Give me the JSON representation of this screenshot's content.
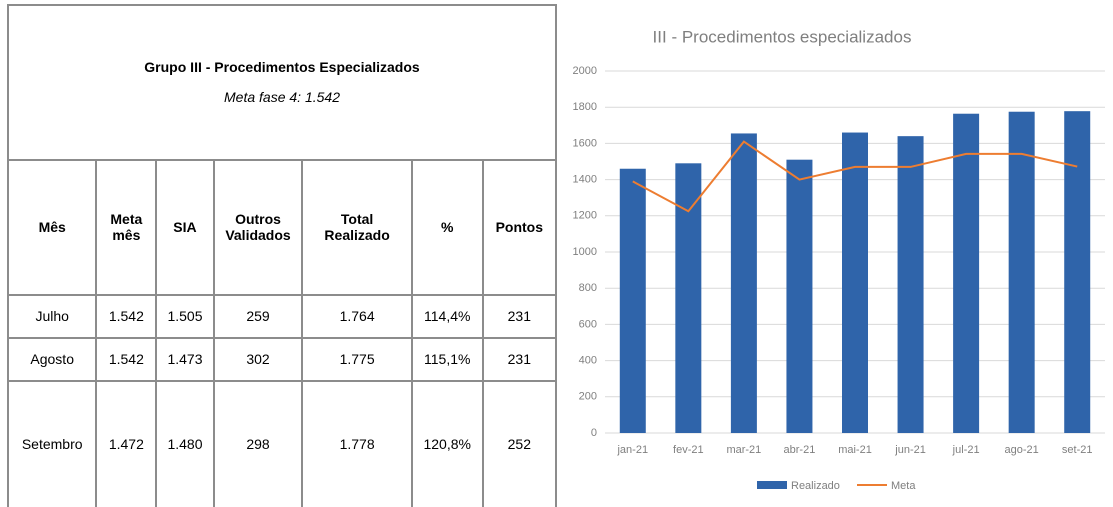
{
  "table": {
    "title": "Grupo III - Procedimentos Especializados",
    "subtitle": "Meta fase 4: 1.542",
    "columns": [
      "Mês",
      "Meta mês",
      "SIA",
      "Outros Validados",
      "Total Realizado",
      "%",
      "Pontos"
    ],
    "rows": [
      [
        "Julho",
        "1.542",
        "1.505",
        "259",
        "1.764",
        "114,4%",
        "231"
      ],
      [
        "Agosto",
        "1.542",
        "1.473",
        "302",
        "1.775",
        "115,1%",
        "231"
      ],
      [
        "Setembro",
        "1.472",
        "1.480",
        "298",
        "1.778",
        "120,8%",
        "252"
      ]
    ]
  },
  "chart_data": {
    "type": "bar",
    "title": "III - Procedimentos especializados",
    "categories": [
      "jan-21",
      "fev-21",
      "mar-21",
      "abr-21",
      "mai-21",
      "jun-21",
      "jul-21",
      "ago-21",
      "set-21"
    ],
    "series": [
      {
        "name": "Realizado",
        "type": "bar",
        "color": "#2f64aa",
        "values": [
          1460,
          1490,
          1655,
          1510,
          1660,
          1640,
          1764,
          1775,
          1778
        ]
      },
      {
        "name": "Meta",
        "type": "line",
        "color": "#ed7d31",
        "values": [
          1390,
          1225,
          1610,
          1400,
          1470,
          1470,
          1542,
          1542,
          1472
        ]
      }
    ],
    "ylim": [
      0,
      2000
    ],
    "yticks": [
      0,
      200,
      400,
      600,
      800,
      1000,
      1200,
      1400,
      1600,
      1800,
      2000
    ],
    "grid": true,
    "legend": "bottom"
  }
}
